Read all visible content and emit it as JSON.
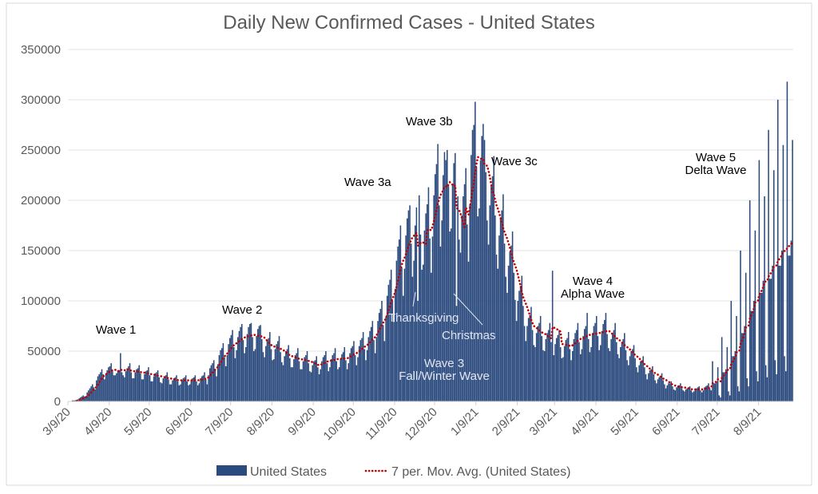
{
  "chart_data": {
    "type": "bar",
    "title": "Daily New Confirmed Cases - United States",
    "xlabel": "",
    "ylabel": "",
    "xlim": [
      "2020-03-09",
      "2021-09-03"
    ],
    "ylim": [
      0,
      350000
    ],
    "y_ticks": [
      "0",
      "50000",
      "100000",
      "150000",
      "200000",
      "250000",
      "300000",
      "350000"
    ],
    "y_tick_values": [
      0,
      50000,
      100000,
      150000,
      200000,
      250000,
      300000,
      350000
    ],
    "x_ticks": [
      "3/9/20",
      "4/9/20",
      "5/9/20",
      "6/9/20",
      "7/9/20",
      "8/9/20",
      "9/9/20",
      "10/9/20",
      "11/9/20",
      "12/9/20",
      "1/9/21",
      "2/9/21",
      "3/9/21",
      "4/9/21",
      "5/9/21",
      "6/9/21",
      "7/9/21",
      "8/9/21"
    ],
    "x_tick_dates": [
      "2020-03-09",
      "2020-04-09",
      "2020-05-09",
      "2020-06-09",
      "2020-07-09",
      "2020-08-09",
      "2020-09-09",
      "2020-10-09",
      "2020-11-09",
      "2020-12-09",
      "2021-01-09",
      "2021-02-09",
      "2021-03-09",
      "2021-04-09",
      "2021-05-09",
      "2021-06-09",
      "2021-07-09",
      "2021-08-09"
    ],
    "grid": true,
    "legend_position": "bottom",
    "series": [
      {
        "name": "United States",
        "type": "bar",
        "color": "#2b4a7e",
        "values_daily": [
          0,
          0,
          0,
          1000,
          1000,
          1000,
          1000,
          2000,
          3000,
          4000,
          5000,
          6000,
          5000,
          4000,
          9000,
          11000,
          13000,
          15000,
          17000,
          14000,
          12000,
          21000,
          25000,
          27000,
          29000,
          32000,
          27000,
          22000,
          27000,
          31000,
          34000,
          35000,
          38000,
          30000,
          26000,
          26000,
          28000,
          31000,
          31000,
          48000,
          29000,
          26000,
          24000,
          30000,
          33000,
          35000,
          38000,
          29000,
          23000,
          23000,
          29000,
          32000,
          33000,
          36000,
          28000,
          22000,
          22000,
          27000,
          30000,
          31000,
          34000,
          26000,
          20000,
          20000,
          25000,
          28000,
          29000,
          31000,
          24000,
          19000,
          18000,
          23000,
          25000,
          26000,
          29000,
          22000,
          17000,
          17000,
          21000,
          23000,
          24000,
          26000,
          20000,
          16000,
          17000,
          21000,
          23000,
          24000,
          26000,
          20000,
          16000,
          17000,
          21000,
          23000,
          24000,
          26000,
          20000,
          16000,
          18000,
          23000,
          25000,
          26000,
          29000,
          22000,
          17000,
          26000,
          33000,
          36000,
          38000,
          41000,
          31000,
          25000,
          37000,
          46000,
          51000,
          53000,
          58000,
          44000,
          35000,
          46000,
          57000,
          63000,
          66000,
          71000,
          54000,
          43000,
          51000,
          64000,
          70000,
          74000,
          77000,
          61000,
          48000,
          54000,
          67000,
          74000,
          77000,
          78000,
          64000,
          50000,
          52000,
          65000,
          72000,
          75000,
          76000,
          62000,
          49000,
          44000,
          55000,
          61000,
          63000,
          69000,
          52000,
          41000,
          42000,
          52000,
          57000,
          60000,
          65000,
          49000,
          39000,
          36000,
          45000,
          50000,
          52000,
          56000,
          43000,
          34000,
          34000,
          42000,
          46000,
          48000,
          53000,
          40000,
          32000,
          32000,
          40000,
          44000,
          46000,
          50000,
          38000,
          30000,
          29000,
          36000,
          40000,
          41000,
          45000,
          34000,
          27000,
          32000,
          40000,
          44000,
          46000,
          50000,
          38000,
          30000,
          34000,
          42000,
          46000,
          48000,
          53000,
          40000,
          32000,
          34000,
          43000,
          47000,
          49000,
          54000,
          41000,
          32000,
          38000,
          48000,
          53000,
          55000,
          60000,
          46000,
          36000,
          44000,
          55000,
          61000,
          63000,
          69000,
          52000,
          41000,
          51000,
          64000,
          70000,
          74000,
          80000,
          61000,
          48000,
          64000,
          80000,
          88000,
          92000,
          100000,
          76000,
          60000,
          84000,
          105000,
          116000,
          121000,
          131000,
          100000,
          79000,
          112000,
          140000,
          154000,
          161000,
          175000,
          133000,
          105000,
          132000,
          165000,
          182000,
          190000,
          195000,
          157000,
          124000,
          140000,
          175000,
          193000,
          100000,
          205000,
          166000,
          131000,
          136000,
          170000,
          187000,
          196000,
          213000,
          162000,
          128000,
          164000,
          205000,
          226000,
          236000,
          256000,
          195000,
          154000,
          180000,
          225000,
          248000,
          240000,
          250000,
          214000,
          169000,
          172000,
          215000,
          237000,
          247000,
          95000,
          204000,
          161000,
          148000,
          185000,
          204000,
          216000,
          232000,
          176000,
          139000,
          196000,
          245000,
          270000,
          275000,
          298000,
          233000,
          184000,
          192000,
          240000,
          264000,
          276000,
          260000,
          228000,
          180000,
          156000,
          195000,
          215000,
          224000,
          244000,
          185000,
          146000,
          132000,
          165000,
          182000,
          190000,
          206000,
          157000,
          124000,
          108000,
          135000,
          149000,
          155000,
          169000,
          128000,
          101000,
          80000,
          100000,
          110000,
          115000,
          125000,
          95000,
          75000,
          60000,
          75000,
          83000,
          86000,
          94000,
          71000,
          56000,
          54000,
          68000,
          75000,
          78000,
          85000,
          65000,
          51000,
          50000,
          62000,
          68000,
          71000,
          78000,
          59000,
          130000,
          46000,
          57000,
          63000,
          66000,
          71000,
          54000,
          43000,
          44000,
          55000,
          61000,
          63000,
          69000,
          52000,
          41000,
          50000,
          62000,
          68000,
          71000,
          78000,
          59000,
          47000,
          52000,
          65000,
          72000,
          75000,
          88000,
          62000,
          49000,
          54000,
          68000,
          75000,
          78000,
          85000,
          65000,
          51000,
          56000,
          70000,
          77000,
          81000,
          88000,
          67000,
          53000,
          50000,
          62000,
          68000,
          71000,
          78000,
          59000,
          47000,
          43000,
          54000,
          59000,
          62000,
          68000,
          51000,
          41000,
          36000,
          45000,
          50000,
          52000,
          56000,
          43000,
          34000,
          29000,
          36000,
          40000,
          41000,
          45000,
          34000,
          27000,
          22000,
          28000,
          31000,
          32000,
          35000,
          27000,
          21000,
          18000,
          22000,
          24000,
          25000,
          28000,
          21000,
          17000,
          13000,
          16000,
          18000,
          18000,
          20000,
          15000,
          12000,
          11000,
          14000,
          15000,
          16000,
          18000,
          13000,
          11000,
          10000,
          12000,
          13000,
          14000,
          15000,
          11000,
          9000,
          10000,
          12000,
          13000,
          14000,
          15000,
          11000,
          9000,
          11000,
          14000,
          15000,
          16000,
          18000,
          13000,
          11000,
          40000,
          18000,
          18000,
          20000,
          34000,
          6000,
          4000,
          64000,
          29000,
          29000,
          32000,
          54000,
          10000,
          6000,
          100000,
          45000,
          45000,
          50000,
          85000,
          15000,
          10000,
          150000,
          68000,
          68000,
          75000,
          128000,
          23000,
          15000,
          200000,
          90000,
          90000,
          100000,
          170000,
          30000,
          20000,
          240000,
          108000,
          108000,
          120000,
          204000,
          36000,
          24000,
          270000,
          122000,
          122000,
          135000,
          230000,
          41000,
          27000,
          300000,
          135000,
          135000,
          150000,
          255000,
          45000,
          30000,
          318000,
          145000,
          145000,
          160000,
          260000
        ]
      },
      {
        "name": "7 per. Mov. Avg. (United States)",
        "type": "line",
        "style": "dotted",
        "color": "#c00000",
        "period": 7
      }
    ],
    "annotations": {
      "wave1": "Wave 1",
      "wave2": "Wave 2",
      "wave3a": "Wave 3a",
      "wave3b": "Wave 3b",
      "wave3c": "Wave 3c",
      "wave3_line1": "Wave 3",
      "wave3_line2": "Fall/Winter Wave",
      "thanksgiving": "Thanksgiving",
      "christmas": "Christmas",
      "wave4_line1": "Wave 4",
      "wave4_line2": "Alpha Wave",
      "wave5_line1": "Wave 5",
      "wave5_line2": "Delta Wave"
    }
  }
}
